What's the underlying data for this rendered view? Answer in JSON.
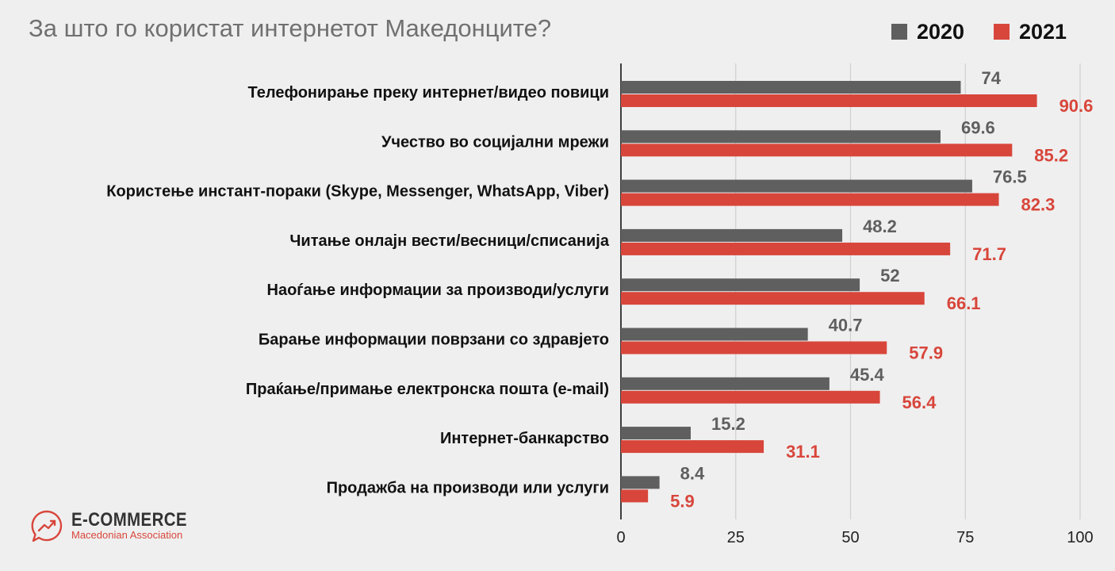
{
  "colors": {
    "series_2020": "#5f5f5f",
    "series_2021": "#d8463b",
    "grid": "#cfcfcf",
    "axis": "#111111"
  },
  "logo": {
    "icon": "trending-up-chat-icon",
    "name": "E-COMMERCE",
    "subtitle": "Macedonian Association"
  },
  "chart_data": {
    "type": "bar",
    "orientation": "horizontal",
    "title": "За што го користат интернетот Македонците?",
    "xlabel": "",
    "ylabel": "",
    "xlim": [
      0,
      100
    ],
    "xticks": [
      0,
      25,
      50,
      75,
      100
    ],
    "grid": true,
    "legend_position": "top-right",
    "categories": [
      "Телефонирање преку интернет/видео повици",
      "Учество во социјални мрежи",
      "Користење инстант-пораки (Skype, Messenger, WhatsApp, Viber)",
      "Читање онлајн вести/весници/списанија",
      "Наоѓање информации за производи/услуги",
      "Барање информации поврзани со здравјето",
      "Праќање/примање електронска пошта (e-mail)",
      "Интернет-банкарство",
      "Продажба на производи или услуги"
    ],
    "series": [
      {
        "name": "2020",
        "values": [
          74,
          69.6,
          76.5,
          48.2,
          52,
          40.7,
          45.4,
          15.2,
          8.4
        ],
        "labels": [
          "74",
          "69.6",
          "76.5",
          "48.2",
          "52",
          "40.7",
          "45.4",
          "15.2",
          "8.4"
        ]
      },
      {
        "name": "2021",
        "values": [
          90.6,
          85.2,
          82.3,
          71.7,
          66.1,
          57.9,
          56.4,
          31.1,
          5.9
        ],
        "labels": [
          "90.6",
          "85.2",
          "82.3",
          "71.7",
          "66.1",
          "57.9",
          "56.4",
          "31.1",
          "5.9"
        ]
      }
    ]
  }
}
